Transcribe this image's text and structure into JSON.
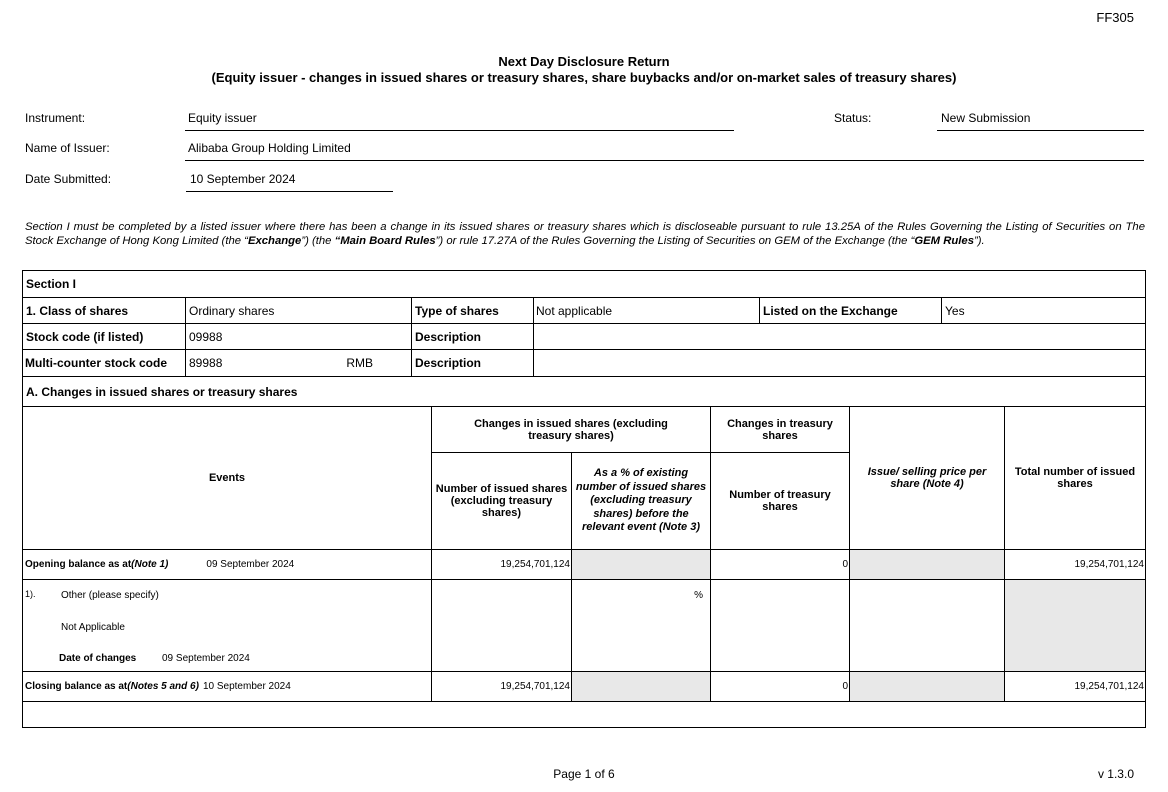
{
  "form_code": "FF305",
  "title": "Next Day Disclosure Return",
  "subtitle": "(Equity issuer - changes in issued shares or treasury shares, share buybacks and/or on-market sales of treasury shares)",
  "header": {
    "instrument_label": "Instrument:",
    "instrument": "Equity issuer",
    "status_label": "Status:",
    "status": "New Submission",
    "issuer_label": "Name of Issuer:",
    "issuer": "Alibaba Group Holding Limited",
    "date_label": "Date Submitted:",
    "date": "10 September 2024"
  },
  "intro": {
    "p1": "Section I must be completed by a listed issuer where there has been a change in its issued shares or treasury shares which is discloseable pursuant to rule 13.25A of the Rules Governing the Listing of Securities on The Stock Exchange of Hong Kong Limited (the “",
    "exchange": "Exchange",
    "p2": "”) (the ",
    "mbr": "“Main Board Rules",
    "p3": "”) or rule 17.27A of the Rules Governing the Listing of Securities on GEM of the Exchange (the “",
    "gem": "GEM Rules",
    "p4": "”)."
  },
  "section": {
    "title": "Section I",
    "class_label": "1. Class of shares",
    "class": "Ordinary shares",
    "type_label": "Type of shares",
    "type": "Not applicable",
    "listed_label": "Listed on the Exchange",
    "listed": "Yes",
    "stock_label": "Stock code (if listed)",
    "stock": "09988",
    "desc_label": "Description",
    "multi_label": "Multi-counter stock code",
    "multi": "89988",
    "currency": "RMB",
    "a_title": "A. Changes in issued shares or treasury shares"
  },
  "table": {
    "h_events": "Events",
    "h_issued": "Changes in issued shares (excluding treasury shares)",
    "h_treasury": "Changes in treasury shares",
    "h_num_issued": "Number of issued shares (excluding treasury shares)",
    "h_pct": "As a % of existing number of issued shares (excluding treasury shares) before the relevant event (Note 3)",
    "h_num_treasury": "Number of treasury shares",
    "h_price": "Issue/ selling price per share (Note 4)",
    "h_total": "Total number of issued shares",
    "opening_label": "Opening balance as at ",
    "opening_note": "(Note 1)",
    "opening_date": "09 September 2024",
    "opening_issued": "19,254,701,124",
    "opening_treasury": "0",
    "opening_total": "19,254,701,124",
    "event_no": "1).",
    "event_type": "Other (please specify)",
    "event_desc": "Not Applicable",
    "event_date_label": "Date of changes",
    "event_date": "09 September 2024",
    "pct_sign": "%",
    "closing_label": "Closing balance as at ",
    "closing_note": "(Notes 5 and 6)",
    "closing_date": "10 September 2024",
    "closing_issued": "19,254,701,124",
    "closing_treasury": "0",
    "closing_total": "19,254,701,124"
  },
  "footer": {
    "page": "Page 1 of 6",
    "version": "v 1.3.0"
  }
}
